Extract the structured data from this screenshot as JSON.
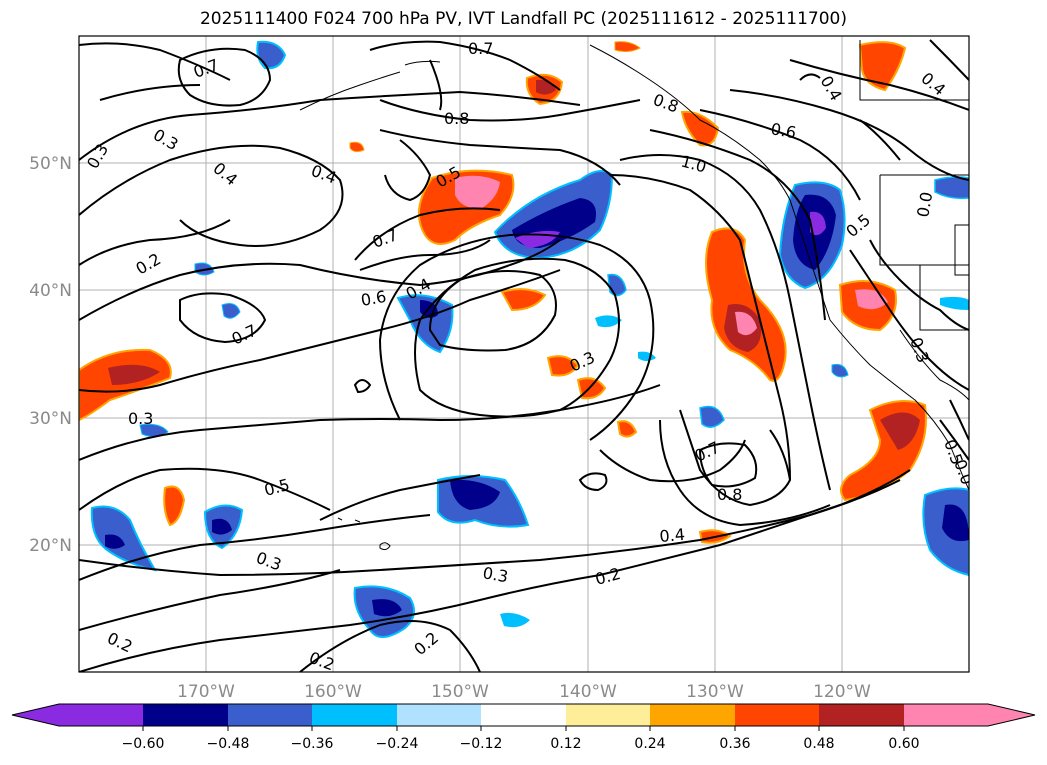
{
  "title": "2025111400 F024 700 hPa PV, IVT Landfall PC (2025111612 - 2025111700)",
  "lon_ticks": [
    "170°W",
    "160°W",
    "150°W",
    "140°W",
    "130°W",
    "120°W"
  ],
  "lat_ticks": [
    "50°N",
    "40°N",
    "30°N",
    "20°N"
  ],
  "colorbar": {
    "ticks": [
      "−0.60",
      "−0.48",
      "−0.36",
      "−0.24",
      "−0.12",
      "0.12",
      "0.24",
      "0.36",
      "0.48",
      "0.60"
    ],
    "colors": [
      "#8a2be2",
      "#00008b",
      "#3a5fcd",
      "#00bfff",
      "#b0e2ff",
      "#ffffff",
      "#ffee99",
      "#ffa500",
      "#ff4500",
      "#b22222",
      "#ff85b0"
    ]
  },
  "contour_labels": [
    "0.7",
    "0.7",
    "0.8",
    "0.8",
    "0.6",
    "1.0",
    "0.4",
    "0.4",
    "0.3",
    "0.3",
    "0.4",
    "0.4",
    "0.5",
    "0.7",
    "0.2",
    "0.6",
    "0.4",
    "0.7",
    "0.3",
    "0.3",
    "0.5",
    "0.3",
    "0.7",
    "0.8",
    "0.4",
    "0.3",
    "0.2",
    "0.2",
    "0.2",
    "0.2",
    "0.5",
    "0.3",
    "0.0",
    "0.5",
    "0.0"
  ]
}
